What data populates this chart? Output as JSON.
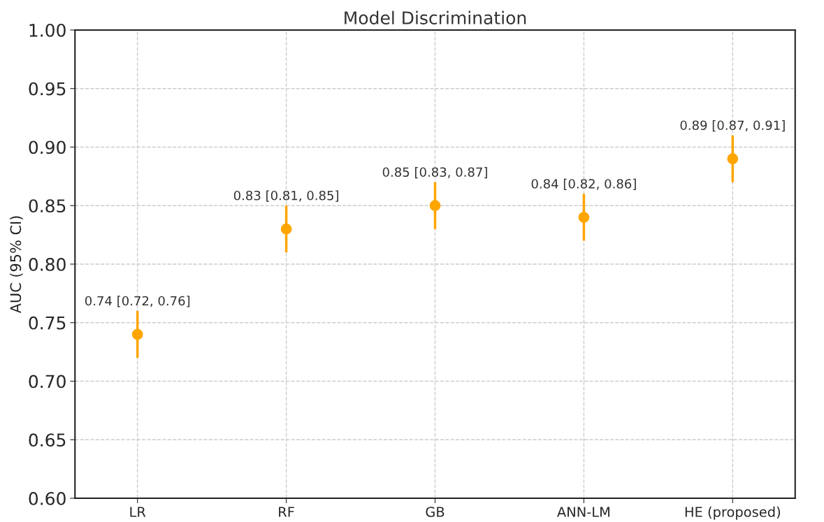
{
  "chart_data": {
    "type": "scatter",
    "title": "Model Discrimination",
    "ylabel": "AUC (95% CI)",
    "categories": [
      "LR",
      "RF",
      "GB",
      "ANN-LM",
      "HE (proposed)"
    ],
    "values": [
      0.74,
      0.83,
      0.85,
      0.84,
      0.89
    ],
    "errors": [
      0.02,
      0.02,
      0.02,
      0.02,
      0.02
    ],
    "value_labels": [
      "0.74 [0.72, 0.76]",
      "0.83 [0.81, 0.85]",
      "0.85 [0.83, 0.87]",
      "0.84 [0.82, 0.86]",
      "0.89 [0.87, 0.91]"
    ],
    "color": "#ffa500",
    "marker": "circle",
    "ylim": [
      0.6,
      1.0
    ],
    "yticks": [
      {
        "value": 0.6,
        "label": "0.60"
      },
      0.65,
      {
        "value": 0.7,
        "label": "0.70"
      },
      0.75,
      {
        "value": 0.8,
        "label": "0.80"
      },
      0.85,
      {
        "value": 0.9,
        "label": "0.90"
      },
      0.95,
      {
        "value": 1.0,
        "label": "1.00"
      }
    ],
    "grid": true
  }
}
